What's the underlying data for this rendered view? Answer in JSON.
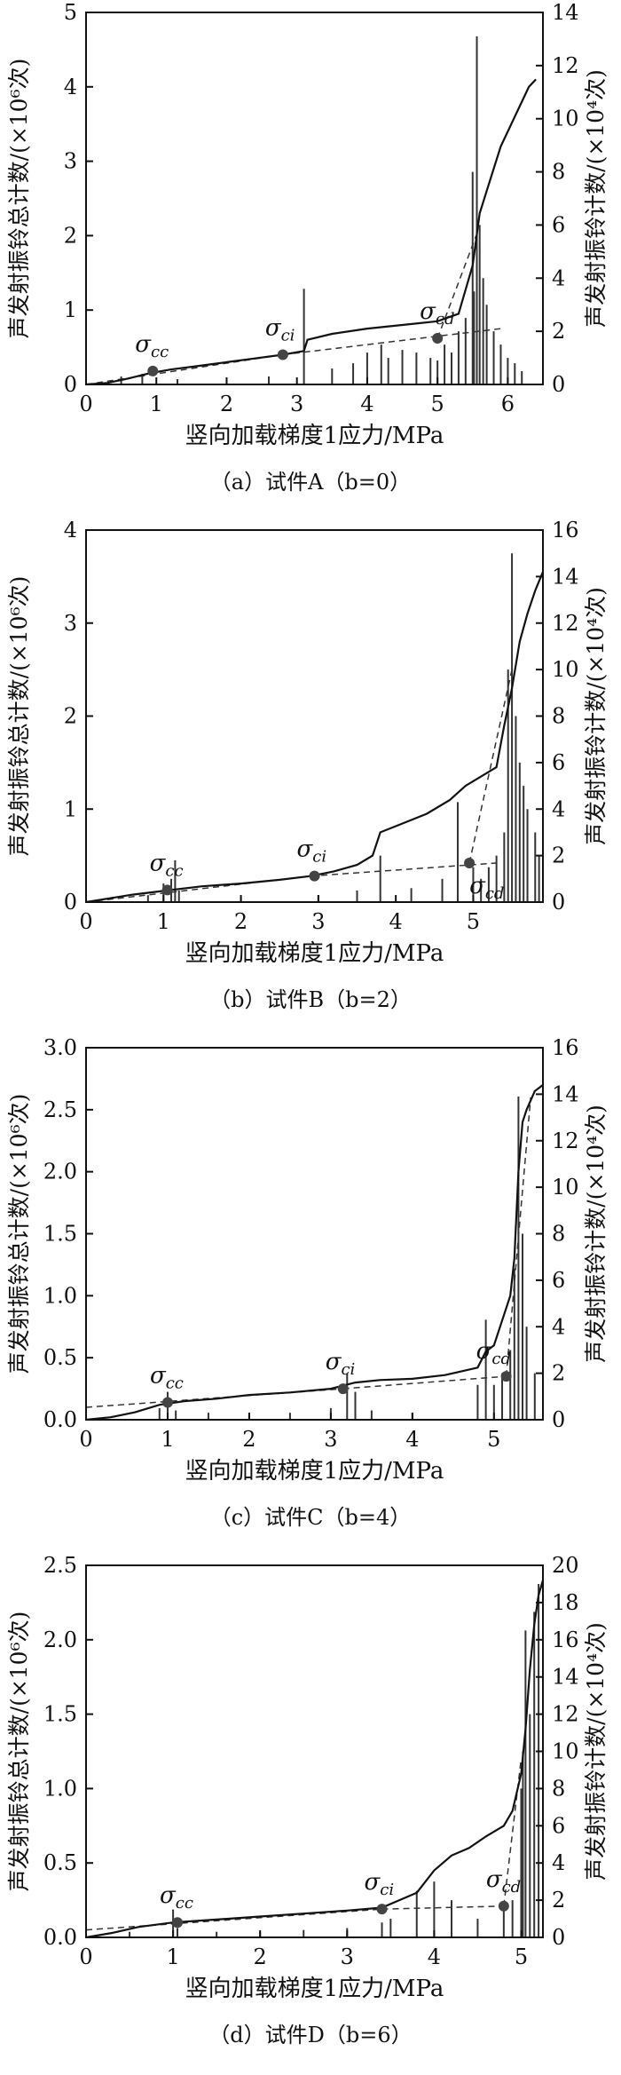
{
  "chart_data": [
    {
      "type": "line",
      "caption": "（a）试件A（b=0）",
      "xlabel": "竖向加载梯度1应力/MPa",
      "ylabel_left": "声发射振铃总计数/(×10⁶次)",
      "ylabel_right": "声发射振铃计数/(×10⁴次)",
      "xlim": [
        0,
        6.5
      ],
      "xticks": [
        0,
        1,
        2,
        3,
        4,
        5,
        6
      ],
      "ylim_left": [
        0,
        5
      ],
      "yticks_left": [
        0,
        1,
        2,
        3,
        4,
        5
      ],
      "ylim_right": [
        0,
        14
      ],
      "yticks_right": [
        0,
        2,
        4,
        6,
        8,
        10,
        12,
        14
      ],
      "cumulative": {
        "x": [
          0,
          0.3,
          0.6,
          0.9,
          1.2,
          1.6,
          2.0,
          2.4,
          2.8,
          3.1,
          3.15,
          3.5,
          4.0,
          4.5,
          5.0,
          5.3,
          5.5,
          5.6,
          5.7,
          5.8,
          5.9,
          6.0,
          6.1,
          6.2,
          6.3,
          6.4
        ],
        "y": [
          0,
          0.02,
          0.08,
          0.15,
          0.2,
          0.25,
          0.3,
          0.35,
          0.4,
          0.45,
          0.6,
          0.68,
          0.75,
          0.8,
          0.85,
          0.95,
          1.6,
          2.3,
          2.6,
          2.9,
          3.2,
          3.4,
          3.6,
          3.8,
          4.0,
          4.1
        ]
      },
      "spikes": {
        "x": [
          0.5,
          0.8,
          1.3,
          2.0,
          2.6,
          3.1,
          3.5,
          3.8,
          4.0,
          4.2,
          4.3,
          4.5,
          4.7,
          4.9,
          5.0,
          5.1,
          5.2,
          5.3,
          5.4,
          5.5,
          5.52,
          5.56,
          5.6,
          5.65,
          5.7,
          5.8,
          5.9,
          6.0,
          6.1,
          6.2
        ],
        "y": [
          0.3,
          0.4,
          0.2,
          0.2,
          0.3,
          3.6,
          0.6,
          0.8,
          1.2,
          1.5,
          1.0,
          1.3,
          1.2,
          1.0,
          0.9,
          1.5,
          1.2,
          2.0,
          2.5,
          8.0,
          3.5,
          13.1,
          6.0,
          4.0,
          3.0,
          2.0,
          1.5,
          1.0,
          0.8,
          0.5
        ]
      },
      "fit_lines": [
        {
          "x": [
            0,
            2.8
          ],
          "y": [
            0,
            0.4
          ]
        },
        {
          "x": [
            2.8,
            5.9
          ],
          "y": [
            0.4,
            0.75
          ]
        },
        {
          "x": [
            5.0,
            5.55
          ],
          "y": [
            0.62,
            2.0
          ]
        }
      ],
      "points": [
        {
          "label": "σcc",
          "x": 0.95,
          "y": 0.18
        },
        {
          "label": "σci",
          "x": 2.8,
          "y": 0.4
        },
        {
          "label": "σcd",
          "x": 5.0,
          "y": 0.62
        }
      ]
    },
    {
      "type": "line",
      "caption": "（b）试件B（b=2）",
      "xlabel": "竖向加载梯度1应力/MPa",
      "ylabel_left": "声发射振铃总计数/(×10⁶次)",
      "ylabel_right": "声发射振铃计数/(×10⁴次)",
      "xlim": [
        0,
        5.9
      ],
      "xticks": [
        0,
        1,
        2,
        3,
        4,
        5
      ],
      "ylim_left": [
        0,
        4
      ],
      "yticks_left": [
        0,
        1,
        2,
        3,
        4
      ],
      "ylim_right": [
        0,
        16
      ],
      "yticks_right": [
        0,
        2,
        4,
        6,
        8,
        10,
        12,
        14,
        16
      ],
      "cumulative": {
        "x": [
          0,
          0.3,
          0.6,
          1.0,
          1.5,
          2.0,
          2.5,
          2.9,
          3.2,
          3.5,
          3.7,
          3.8,
          4.1,
          4.4,
          4.7,
          4.9,
          5.1,
          5.3,
          5.4,
          5.5,
          5.6,
          5.7,
          5.8,
          5.9
        ],
        "y": [
          0,
          0.04,
          0.08,
          0.12,
          0.17,
          0.2,
          0.24,
          0.28,
          0.33,
          0.4,
          0.5,
          0.75,
          0.85,
          0.95,
          1.1,
          1.25,
          1.35,
          1.45,
          1.9,
          2.3,
          2.8,
          3.1,
          3.35,
          3.55
        ]
      },
      "spikes": {
        "x": [
          0.8,
          1.0,
          1.1,
          1.15,
          1.2,
          2.0,
          3.0,
          3.5,
          3.8,
          4.2,
          4.6,
          4.8,
          5.0,
          5.1,
          5.2,
          5.3,
          5.4,
          5.45,
          5.5,
          5.55,
          5.6,
          5.65,
          5.7,
          5.8,
          5.85
        ],
        "y": [
          0.3,
          0.8,
          1.0,
          1.8,
          0.5,
          0.2,
          0.3,
          0.5,
          2.0,
          0.6,
          1.0,
          4.3,
          1.5,
          1.0,
          1.5,
          2.0,
          3.0,
          10.0,
          15.0,
          8.0,
          6.0,
          5.0,
          4.0,
          3.0,
          2.0
        ]
      },
      "fit_lines": [
        {
          "x": [
            0,
            2.9
          ],
          "y": [
            0,
            0.28
          ]
        },
        {
          "x": [
            2.9,
            5.3
          ],
          "y": [
            0.28,
            0.42
          ]
        },
        {
          "x": [
            4.95,
            5.5
          ],
          "y": [
            0.42,
            2.5
          ]
        }
      ],
      "points": [
        {
          "label": "σcc",
          "x": 1.05,
          "y": 0.13
        },
        {
          "label": "σci",
          "x": 2.95,
          "y": 0.28
        },
        {
          "label": "σcd",
          "x": 4.95,
          "y": 0.42
        }
      ]
    },
    {
      "type": "line",
      "caption": "（c）试件C（b=4）",
      "xlabel": "竖向加载梯度1应力/MPa",
      "ylabel_left": "声发射振铃总计数/(×10⁶次)",
      "ylabel_right": "声发射振铃计数/(×10⁴次)",
      "xlim": [
        0,
        5.6
      ],
      "xticks": [
        0,
        1,
        2,
        3,
        4,
        5
      ],
      "ylim_left": [
        0,
        3.0
      ],
      "yticks_left": [
        0.0,
        0.5,
        1.0,
        1.5,
        2.0,
        2.5,
        3.0
      ],
      "ylim_right": [
        0,
        16
      ],
      "yticks_right": [
        0,
        2,
        4,
        6,
        8,
        10,
        12,
        14,
        16
      ],
      "cumulative": {
        "x": [
          0,
          0.3,
          0.6,
          0.9,
          1.2,
          1.6,
          2.0,
          2.5,
          3.0,
          3.3,
          3.6,
          4.0,
          4.4,
          4.8,
          4.9,
          5.0,
          5.1,
          5.2,
          5.25,
          5.3,
          5.35,
          5.4,
          5.5,
          5.6
        ],
        "y": [
          0,
          0.02,
          0.06,
          0.12,
          0.15,
          0.17,
          0.2,
          0.22,
          0.25,
          0.3,
          0.32,
          0.33,
          0.36,
          0.42,
          0.55,
          0.6,
          0.8,
          1.0,
          1.3,
          2.0,
          2.4,
          2.5,
          2.65,
          2.7
        ]
      },
      "spikes": {
        "x": [
          0.9,
          1.0,
          1.1,
          1.5,
          2.0,
          2.5,
          3.0,
          3.2,
          3.3,
          3.5,
          4.0,
          4.8,
          4.9,
          5.0,
          5.1,
          5.2,
          5.25,
          5.3,
          5.35,
          5.4,
          5.5
        ],
        "y": [
          0.5,
          1.2,
          0.4,
          0.3,
          0.2,
          0.3,
          0.5,
          2.0,
          1.2,
          0.4,
          0.3,
          1.5,
          4.3,
          1.5,
          2.0,
          3.0,
          6.5,
          13.9,
          8.0,
          4.0,
          2.0
        ]
      },
      "fit_lines": [
        {
          "x": [
            0,
            3.15
          ],
          "y": [
            0.1,
            0.25
          ]
        },
        {
          "x": [
            3.15,
            5.15
          ],
          "y": [
            0.25,
            0.35
          ]
        },
        {
          "x": [
            5.15,
            5.45
          ],
          "y": [
            0.35,
            2.6
          ]
        }
      ],
      "points": [
        {
          "label": "σcc",
          "x": 1.0,
          "y": 0.14
        },
        {
          "label": "σci",
          "x": 3.15,
          "y": 0.25
        },
        {
          "label": "σcd",
          "x": 5.15,
          "y": 0.35
        }
      ]
    },
    {
      "type": "line",
      "caption": "（d）试件D（b=6）",
      "xlabel": "竖向加载梯度1应力/MPa",
      "ylabel_left": "声发射振铃总计数/(×10⁶次)",
      "ylabel_right": "声发射振铃计数/(×10⁴次)",
      "xlim": [
        0,
        5.25
      ],
      "xticks": [
        0,
        1,
        2,
        3,
        4,
        5
      ],
      "ylim_left": [
        0,
        2.5
      ],
      "yticks_left": [
        0.0,
        0.5,
        1.0,
        1.5,
        2.0,
        2.5
      ],
      "ylim_right": [
        0,
        20
      ],
      "yticks_right": [
        0,
        2,
        4,
        6,
        8,
        10,
        12,
        14,
        16,
        18,
        20
      ],
      "cumulative": {
        "x": [
          0,
          0.3,
          0.6,
          1.0,
          1.5,
          2.0,
          2.5,
          3.0,
          3.4,
          3.8,
          4.0,
          4.2,
          4.4,
          4.6,
          4.8,
          4.9,
          5.0,
          5.05,
          5.1,
          5.15,
          5.2,
          5.25
        ],
        "y": [
          0,
          0.03,
          0.07,
          0.1,
          0.12,
          0.14,
          0.16,
          0.18,
          0.2,
          0.3,
          0.45,
          0.55,
          0.6,
          0.68,
          0.75,
          0.85,
          1.1,
          1.4,
          1.8,
          2.1,
          2.3,
          2.4
        ]
      },
      "spikes": {
        "x": [
          0.5,
          1.0,
          1.05,
          1.5,
          2.0,
          2.5,
          3.0,
          3.4,
          3.5,
          3.8,
          4.0,
          4.2,
          4.5,
          4.8,
          4.9,
          5.0,
          5.02,
          5.05,
          5.1,
          5.15,
          5.2,
          5.25
        ],
        "y": [
          0.3,
          1.5,
          0.5,
          0.3,
          0.3,
          0.4,
          0.5,
          0.8,
          1.0,
          2.5,
          3.0,
          2.0,
          1.0,
          1.5,
          2.0,
          8.0,
          10.0,
          16.5,
          12.0,
          17.5,
          19.0,
          6.0
        ]
      },
      "fit_lines": [
        {
          "x": [
            0,
            3.4
          ],
          "y": [
            0.05,
            0.19
          ]
        },
        {
          "x": [
            3.4,
            4.8
          ],
          "y": [
            0.19,
            0.21
          ]
        },
        {
          "x": [
            4.8,
            5.0
          ],
          "y": [
            0.21,
            1.2
          ]
        }
      ],
      "points": [
        {
          "label": "σcc",
          "x": 1.05,
          "y": 0.1
        },
        {
          "label": "σci",
          "x": 3.4,
          "y": 0.19
        },
        {
          "label": "σcd",
          "x": 4.8,
          "y": 0.21
        }
      ]
    }
  ]
}
